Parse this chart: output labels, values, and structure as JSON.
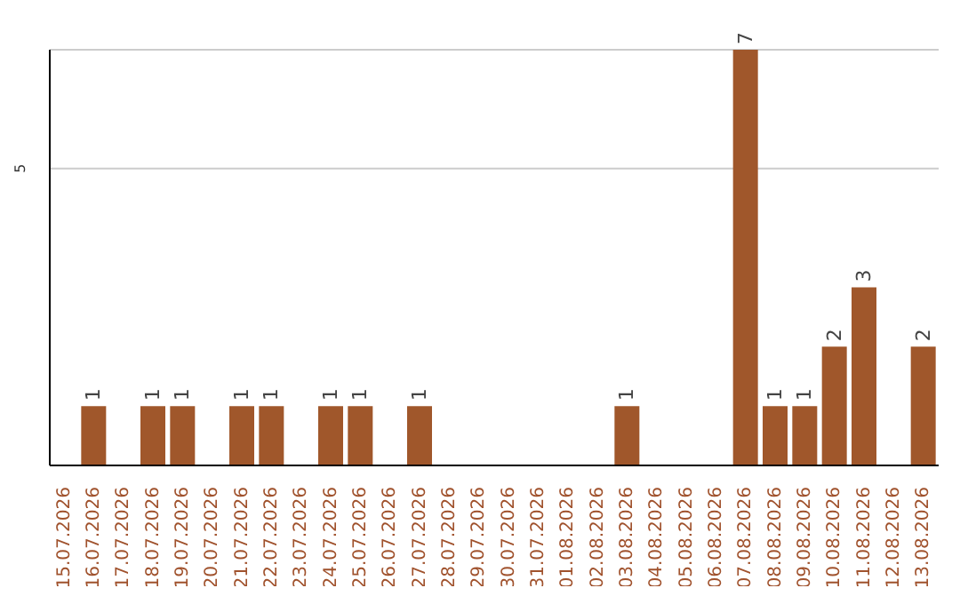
{
  "chart_data": {
    "type": "bar",
    "categories": [
      "15.07.2026",
      "16.07.2026",
      "17.07.2026",
      "18.07.2026",
      "19.07.2026",
      "20.07.2026",
      "21.07.2026",
      "22.07.2026",
      "23.07.2026",
      "24.07.2026",
      "25.07.2026",
      "26.07.2026",
      "27.07.2026",
      "28.07.2026",
      "29.07.2026",
      "30.07.2026",
      "31.07.2026",
      "01.08.2026",
      "02.08.2026",
      "03.08.2026",
      "04.08.2026",
      "05.08.2026",
      "06.08.2026",
      "07.08.2026",
      "08.08.2026",
      "09.08.2026",
      "10.08.2026",
      "11.08.2026",
      "12.08.2026",
      "13.08.2026"
    ],
    "values": [
      0,
      1,
      0,
      1,
      1,
      0,
      1,
      1,
      0,
      1,
      1,
      0,
      1,
      0,
      0,
      0,
      0,
      0,
      0,
      1,
      0,
      0,
      0,
      7,
      1,
      1,
      2,
      3,
      0,
      2
    ],
    "value_labels": [
      null,
      "1",
      null,
      "1",
      "1",
      null,
      "1",
      "1",
      null,
      "1",
      "1",
      null,
      "1",
      null,
      null,
      null,
      null,
      null,
      null,
      "1",
      null,
      null,
      null,
      "7",
      "1",
      "1",
      "2",
      "3",
      null,
      "2"
    ],
    "color": "#a0572b",
    "ylim": [
      0,
      7
    ],
    "yticks": [
      5
    ],
    "grid": "y"
  }
}
